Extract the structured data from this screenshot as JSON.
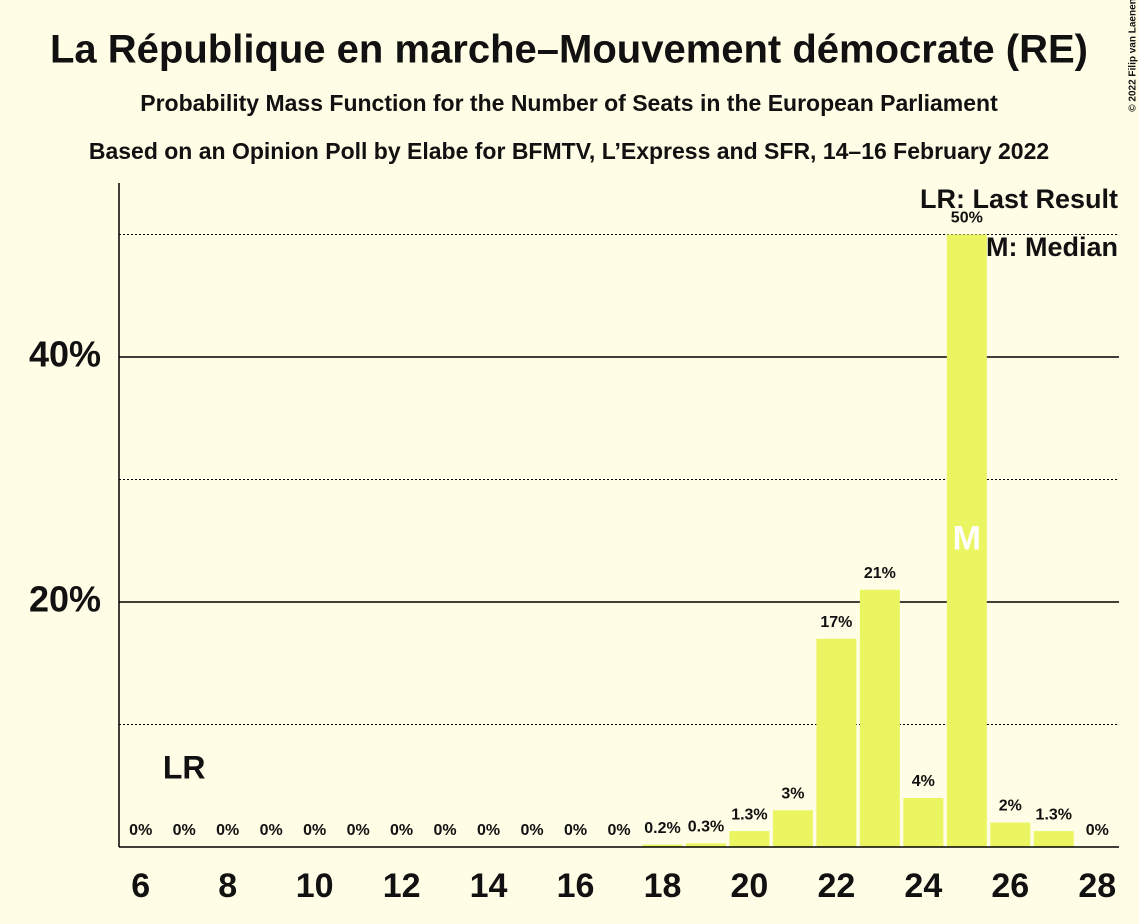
{
  "chart_data": {
    "type": "bar",
    "title": "La République en marche–Mouvement démocrate (RE)",
    "subtitle": "Probability Mass Function for the Number of Seats in the European Parliament",
    "subtitle2": "Based on an Opinion Poll by Elabe for BFMTV, L’Express and SFR, 14–16 February 2022",
    "x": [
      6,
      7,
      8,
      9,
      10,
      11,
      12,
      13,
      14,
      15,
      16,
      17,
      18,
      19,
      20,
      21,
      22,
      23,
      24,
      25,
      26,
      27,
      28
    ],
    "values": [
      0,
      0,
      0,
      0,
      0,
      0,
      0,
      0,
      0,
      0,
      0,
      0,
      0.2,
      0.3,
      1.3,
      3,
      17,
      21,
      4,
      50,
      2,
      1.3,
      0
    ],
    "value_labels": [
      "0%",
      "0%",
      "0%",
      "0%",
      "0%",
      "0%",
      "0%",
      "0%",
      "0%",
      "0%",
      "0%",
      "0%",
      "0.2%",
      "0.3%",
      "1.3%",
      "3%",
      "17%",
      "21%",
      "4%",
      "50%",
      "2%",
      "1.3%",
      "0%"
    ],
    "color": "#ebf562",
    "xlim": [
      5.5,
      28.5
    ],
    "xticks": [
      6,
      8,
      10,
      12,
      14,
      16,
      18,
      20,
      22,
      24,
      26,
      28
    ],
    "ylim": [
      0,
      54.2
    ],
    "yticks": [
      {
        "value": 20,
        "label": "20%"
      },
      {
        "value": 40,
        "label": "40%"
      }
    ],
    "minor_yticks": [
      10,
      30,
      50
    ],
    "last_result": {
      "x": 7,
      "label": "LR"
    },
    "median": {
      "x": 25,
      "label": "M"
    },
    "legend": [
      "LR: Last Result",
      "M: Median"
    ],
    "credit": "© 2022 Filip van Laenen"
  }
}
